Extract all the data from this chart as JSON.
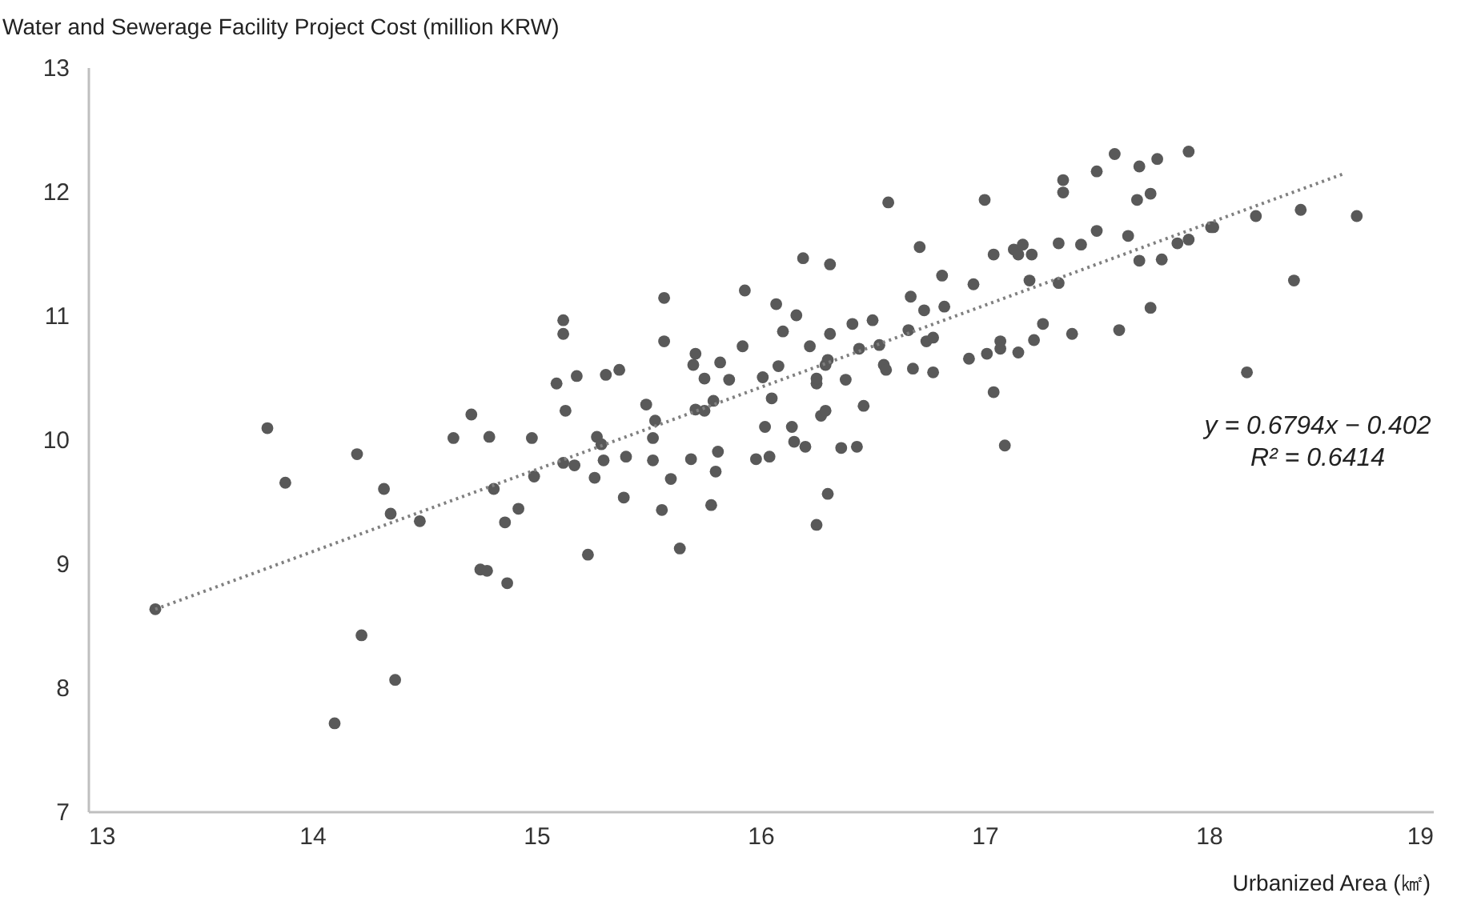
{
  "chart_data": {
    "type": "scatter",
    "ylabel": "Water and Sewerage Facility Project Cost (million KRW)",
    "xlabel": "Urbanized Area (㎢)",
    "annotations": [
      "y = 0.6794x − 0.402",
      "R² = 0.6414"
    ],
    "xlim": [
      13,
      19
    ],
    "xticks": [
      13,
      14,
      15,
      16,
      17,
      18,
      19
    ],
    "ylim": [
      7,
      13
    ],
    "yticks": [
      7,
      8,
      9,
      10,
      11,
      12,
      13
    ],
    "grid": false,
    "marker": "circle",
    "series": [
      {
        "color": "#595959",
        "x": [
          13.3,
          13.8,
          13.88,
          14.2,
          14.22,
          14.1,
          14.37,
          14.32,
          14.35,
          14.48,
          14.63,
          14.71,
          14.79,
          14.81,
          14.75,
          14.78,
          14.87,
          14.86,
          14.92,
          14.98,
          14.99,
          15.09,
          15.12,
          15.12,
          15.13,
          15.18,
          15.12,
          15.17,
          15.23,
          15.26,
          15.27,
          15.29,
          15.3,
          15.31,
          15.37,
          15.39,
          15.4,
          15.49,
          15.52,
          15.53,
          15.52,
          15.56,
          15.57,
          15.57,
          15.6,
          15.64,
          15.69,
          15.7,
          15.71,
          15.71,
          15.75,
          15.75,
          15.78,
          15.79,
          15.8,
          15.81,
          15.82,
          15.86,
          15.92,
          15.93,
          15.98,
          16.01,
          16.02,
          16.04,
          16.05,
          16.07,
          16.08,
          16.1,
          16.14,
          16.15,
          16.16,
          16.19,
          16.2,
          16.22,
          16.25,
          16.25,
          16.25,
          16.27,
          16.29,
          16.29,
          16.3,
          16.31,
          16.3,
          16.31,
          16.36,
          16.38,
          16.41,
          16.43,
          16.44,
          16.46,
          16.5,
          16.53,
          16.55,
          16.56,
          16.57,
          16.66,
          16.67,
          16.68,
          16.71,
          16.73,
          16.74,
          16.77,
          16.77,
          16.81,
          16.82,
          16.93,
          16.95,
          17.0,
          17.01,
          17.04,
          17.04,
          17.07,
          17.07,
          17.09,
          17.13,
          17.15,
          17.17,
          17.21,
          17.15,
          17.2,
          17.22,
          17.26,
          17.33,
          17.33,
          17.35,
          17.35,
          17.39,
          17.43,
          17.5,
          17.5,
          17.58,
          17.6,
          17.64,
          17.68,
          17.69,
          17.69,
          17.74,
          17.77,
          17.79,
          17.74,
          17.86,
          17.91,
          17.91,
          18.01,
          18.02,
          18.17,
          18.21,
          18.38,
          18.41,
          18.66
        ],
        "values": [
          8.63,
          10.09,
          9.65,
          9.88,
          8.42,
          7.71,
          8.06,
          9.6,
          9.4,
          9.34,
          10.01,
          10.2,
          10.02,
          9.6,
          8.95,
          8.94,
          8.84,
          9.33,
          9.44,
          10.01,
          9.7,
          10.45,
          10.96,
          10.85,
          10.23,
          10.51,
          9.81,
          9.79,
          9.07,
          9.69,
          10.02,
          9.96,
          9.83,
          10.52,
          10.56,
          9.53,
          9.86,
          10.28,
          10.01,
          10.15,
          9.83,
          9.43,
          11.14,
          10.79,
          9.68,
          9.12,
          9.84,
          10.6,
          10.69,
          10.24,
          10.49,
          10.23,
          9.47,
          10.31,
          9.74,
          9.9,
          10.62,
          10.48,
          10.75,
          11.2,
          9.84,
          10.5,
          10.1,
          9.86,
          10.33,
          11.09,
          10.59,
          10.87,
          10.1,
          9.98,
          11.0,
          11.46,
          9.94,
          10.75,
          9.31,
          10.45,
          10.49,
          10.19,
          10.23,
          10.6,
          10.64,
          11.41,
          9.56,
          10.85,
          9.93,
          10.48,
          10.93,
          9.94,
          10.73,
          10.27,
          10.96,
          10.76,
          10.6,
          10.56,
          11.91,
          10.88,
          11.15,
          10.57,
          11.55,
          11.04,
          10.79,
          10.82,
          10.54,
          11.32,
          11.07,
          10.65,
          11.25,
          11.93,
          10.69,
          11.49,
          10.38,
          10.79,
          10.73,
          9.95,
          11.53,
          11.49,
          11.57,
          11.49,
          10.7,
          11.28,
          10.8,
          10.93,
          11.26,
          11.58,
          12.09,
          11.99,
          10.85,
          11.57,
          11.68,
          12.16,
          12.3,
          10.88,
          11.64,
          11.93,
          12.2,
          11.44,
          11.98,
          12.26,
          11.45,
          11.06,
          11.58,
          11.61,
          12.32,
          11.71,
          11.71,
          10.54,
          11.8,
          11.28,
          11.85,
          11.8
        ]
      },
      {
        "type": "line",
        "color": "#808080",
        "line_style": "dotted",
        "marker": "none",
        "x": [
          13.3,
          18.6
        ],
        "values": [
          8.63,
          12.14
        ]
      }
    ]
  }
}
